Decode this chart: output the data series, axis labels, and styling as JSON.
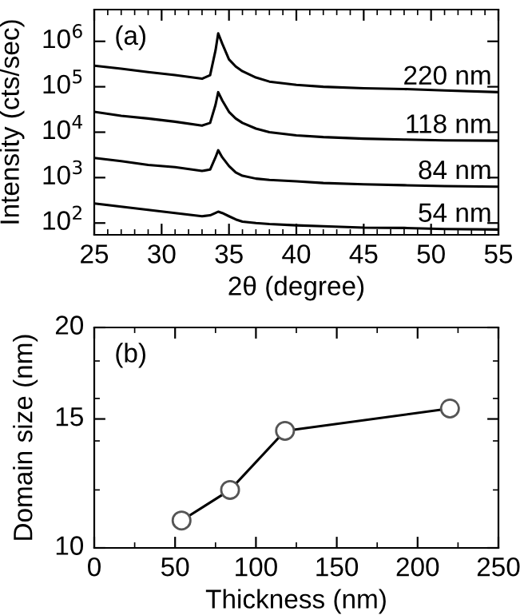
{
  "chart_data": [
    {
      "type": "line",
      "title": "(a)",
      "xlabel": "2θ (degree)",
      "ylabel": "Intensity (cts/sec)",
      "log": "y",
      "xlim": [
        25,
        55
      ],
      "xticks": [
        25,
        30,
        35,
        40,
        45,
        50,
        55
      ],
      "ylim": [
        55,
        5000000
      ],
      "yticks": [
        {
          "value": 100,
          "label": "10$^{2}$"
        },
        {
          "value": 1000,
          "label": "10$^{3}$"
        },
        {
          "value": 10000,
          "label": "10$^{4}$"
        },
        {
          "value": 100000,
          "label": "10$^{5}$"
        },
        {
          "value": 1000000,
          "label": "10$^{6}$"
        }
      ],
      "grid": false,
      "legend": "right",
      "marker": "none",
      "line_style": "solid",
      "x": [
        25,
        27,
        29,
        31,
        33,
        33.6,
        34.0,
        34.2,
        34.5,
        35,
        35.5,
        36,
        37,
        38,
        40,
        42,
        45,
        48,
        51,
        55
      ],
      "series": [
        {
          "name": "220 nm",
          "color": "#000000",
          "values": [
            290000,
            250000,
            210000,
            180000,
            150000,
            180000,
            630000,
            1500000,
            890000,
            400000,
            280000,
            220000,
            160000,
            130000,
            110000,
            100000,
            93000,
            89000,
            83000,
            76000
          ]
        },
        {
          "name": "118 nm",
          "color": "#000000",
          "values": [
            28000,
            23000,
            20000,
            17000,
            14000,
            16000,
            40000,
            76000,
            50000,
            28000,
            20000,
            16000,
            12000,
            10000,
            8500,
            7800,
            7200,
            6900,
            6600,
            6500
          ]
        },
        {
          "name": "84 nm",
          "color": "#000000",
          "values": [
            2700,
            2300,
            1900,
            1700,
            1400,
            1500,
            2800,
            4000,
            2800,
            1800,
            1300,
            1100,
            950,
            890,
            830,
            760,
            710,
            680,
            650,
            630
          ]
        },
        {
          "name": "54 nm",
          "color": "#000000",
          "values": [
            270,
            230,
            195,
            166,
            141,
            148,
            166,
            178,
            166,
            141,
            120,
            107,
            100,
            95,
            89,
            85,
            79,
            78,
            74,
            72
          ]
        }
      ]
    },
    {
      "type": "line",
      "title": "(b)",
      "xlabel": "Thickness (nm)",
      "ylabel": "Domain size (nm)",
      "log": "y",
      "xlim": [
        0,
        250
      ],
      "xticks": [
        0,
        50,
        100,
        150,
        200,
        250
      ],
      "ylim": [
        10,
        20
      ],
      "yticks": [
        10,
        15,
        20
      ],
      "grid": false,
      "legend": false,
      "marker": "circle",
      "line_style": "solid",
      "x": [
        54,
        84,
        118,
        220
      ],
      "series": [
        {
          "color": "#000000",
          "values": [
            10.9,
            12.0,
            14.45,
            15.5
          ]
        }
      ]
    }
  ]
}
